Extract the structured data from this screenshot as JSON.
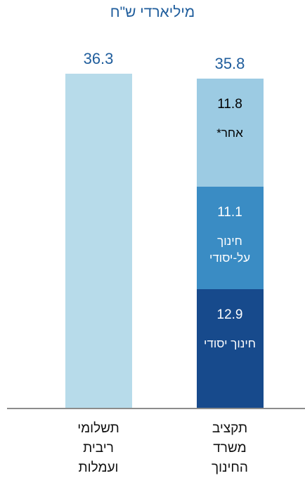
{
  "chart_data": {
    "type": "stacked_bar",
    "title": "מיליארדי ש\"ח",
    "categories": [
      "תשלומי ריבית ועמלות",
      "תקציב משרד החינוך"
    ],
    "series": [
      {
        "color": "#b7dbea",
        "values": [
          36.3,
          null
        ]
      },
      {
        "name": "חינוך יסודי",
        "color": "#174a8c",
        "values": [
          null,
          12.9
        ]
      },
      {
        "name": "חינוך על-יסודי",
        "color": "#3a8cc4",
        "values": [
          null,
          11.1
        ]
      },
      {
        "name": "אחר*",
        "color": "#9ccbe3",
        "values": [
          null,
          11.8
        ]
      }
    ],
    "stack_total": 35.8
  }
}
